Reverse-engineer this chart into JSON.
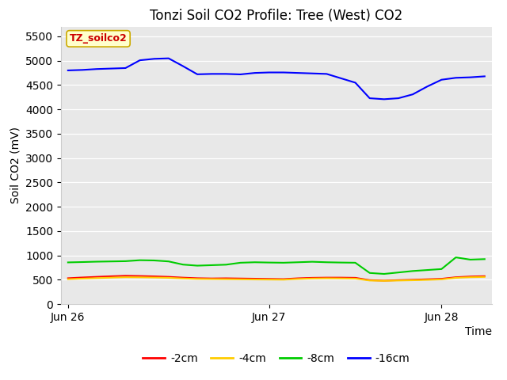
{
  "title": "Tonzi Soil CO2 Profile: Tree (West) CO2",
  "ylabel": "Soil CO2 (mV)",
  "xlabel": "Time",
  "watermark": "TZ_soilco2",
  "ylim": [
    0,
    5700
  ],
  "yticks": [
    0,
    500,
    1000,
    1500,
    2000,
    2500,
    3000,
    3500,
    4000,
    4500,
    5000,
    5500
  ],
  "series": {
    "-2cm": {
      "color": "#ff0000",
      "values": [
        530,
        545,
        558,
        570,
        580,
        575,
        568,
        558,
        542,
        530,
        525,
        528,
        524,
        520,
        516,
        512,
        528,
        538,
        542,
        542,
        538,
        490,
        480,
        490,
        498,
        508,
        518,
        550,
        565,
        572
      ]
    },
    "-4cm": {
      "color": "#ffcc00",
      "values": [
        510,
        522,
        532,
        542,
        550,
        548,
        544,
        538,
        525,
        515,
        512,
        510,
        507,
        504,
        502,
        500,
        514,
        524,
        528,
        526,
        522,
        482,
        476,
        482,
        488,
        496,
        506,
        538,
        550,
        556
      ]
    },
    "-8cm": {
      "color": "#00cc00",
      "values": [
        855,
        862,
        870,
        875,
        880,
        900,
        895,
        875,
        810,
        788,
        798,
        808,
        848,
        858,
        852,
        848,
        858,
        868,
        858,
        852,
        848,
        638,
        618,
        648,
        678,
        698,
        718,
        958,
        912,
        922
      ]
    },
    "-16cm": {
      "color": "#0000ff",
      "values": [
        4800,
        4810,
        4828,
        4838,
        4848,
        5008,
        5038,
        5048,
        4888,
        4720,
        4728,
        4728,
        4718,
        4748,
        4758,
        4758,
        4748,
        4738,
        4728,
        4638,
        4548,
        4228,
        4208,
        4228,
        4308,
        4468,
        4608,
        4648,
        4658,
        4678
      ]
    }
  },
  "xtick_labels": [
    "Jun 26",
    "Jun 27",
    "Jun 28"
  ],
  "xtick_positions": [
    0,
    14,
    26
  ],
  "n_points": 30,
  "background_color": "#e8e8e8",
  "title_fontsize": 12,
  "axis_label_fontsize": 10,
  "tick_fontsize": 10,
  "watermark_facecolor": "#ffffcc",
  "watermark_edgecolor": "#ccaa00",
  "watermark_textcolor": "#cc0000"
}
